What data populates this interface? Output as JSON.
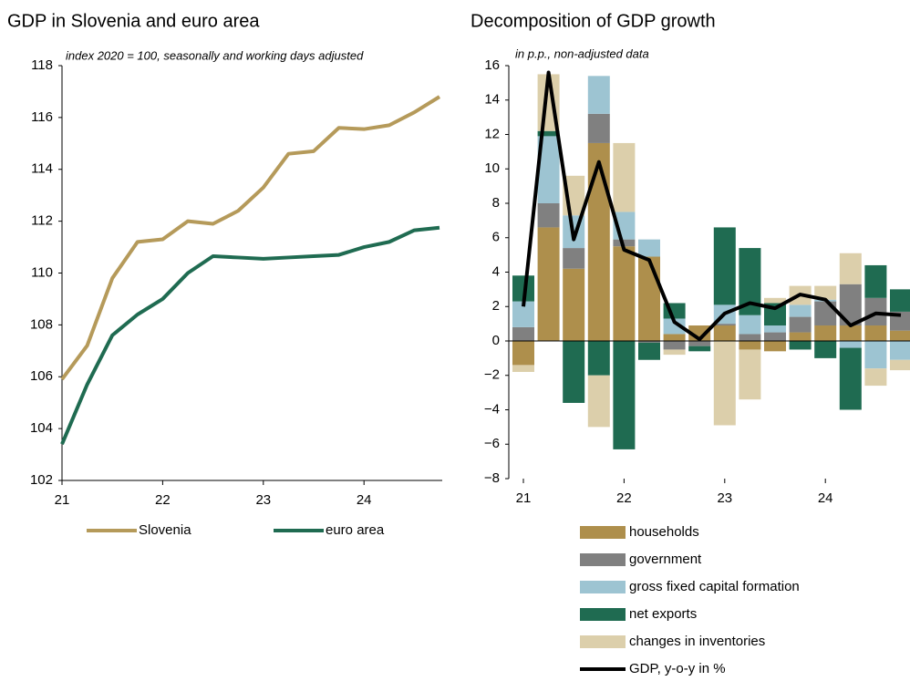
{
  "chart_data": [
    {
      "type": "line",
      "title": "GDP in Slovenia and euro area",
      "subtitle": "index 2020 = 100, seasonally and working days adjusted",
      "categories": [
        "21",
        null,
        null,
        null,
        "22",
        null,
        null,
        null,
        "23",
        null,
        null,
        null,
        "24",
        null,
        null,
        null
      ],
      "series": [
        {
          "name": "Slovenia",
          "color": "#b59a5a",
          "values": [
            105.9,
            107.2,
            109.8,
            111.2,
            111.3,
            112.0,
            111.9,
            112.4,
            113.3,
            114.6,
            114.7,
            115.6,
            115.55,
            115.7,
            116.2,
            116.8
          ]
        },
        {
          "name": "euro area",
          "color": "#1f6b51",
          "values": [
            103.4,
            105.7,
            107.6,
            108.4,
            109.0,
            110.0,
            110.65,
            110.6,
            110.55,
            110.6,
            110.65,
            110.7,
            111.0,
            111.2,
            111.65,
            111.75
          ]
        }
      ],
      "ylim": [
        102,
        118
      ],
      "yticks": [
        102,
        104,
        106,
        108,
        110,
        112,
        114,
        116,
        118
      ],
      "grid": false
    },
    {
      "type": "bar",
      "stacked": true,
      "title": "Decomposition of GDP growth",
      "subtitle": "in p.p., non-adjusted data",
      "categories": [
        "21",
        null,
        null,
        null,
        "22",
        null,
        null,
        null,
        "23",
        null,
        null,
        null,
        "24",
        null,
        null,
        null
      ],
      "series": [
        {
          "name": "households",
          "color": "#ae8f4c",
          "values": [
            -1.4,
            6.6,
            4.2,
            11.5,
            5.5,
            4.9,
            0.4,
            0.9,
            0.9,
            -0.5,
            -0.6,
            0.5,
            0.9,
            0.9,
            0.9,
            0.6
          ]
        },
        {
          "name": "government",
          "color": "#808080",
          "values": [
            0.8,
            1.4,
            1.2,
            1.7,
            0.4,
            -0.1,
            -0.5,
            -0.3,
            0.1,
            0.4,
            0.5,
            0.9,
            1.4,
            2.4,
            1.6,
            1.1
          ]
        },
        {
          "name": "gross fixed capital formation",
          "color": "#9dc4d2",
          "values": [
            1.5,
            3.9,
            1.9,
            2.2,
            1.6,
            1.0,
            0.9,
            0.0,
            1.1,
            1.1,
            0.4,
            0.7,
            0.1,
            -0.4,
            -1.6,
            -1.1
          ]
        },
        {
          "name": "net exports",
          "color": "#1f6b51",
          "values": [
            1.5,
            0.3,
            -3.6,
            -2.0,
            -6.3,
            -1.0,
            0.9,
            -0.3,
            4.5,
            3.9,
            1.3,
            -0.5,
            -1.0,
            -3.6,
            1.9,
            1.3
          ]
        },
        {
          "name": "changes in inventories",
          "color": "#dccfab",
          "values": [
            -0.4,
            3.3,
            2.3,
            -3.0,
            4.0,
            0.0,
            -0.3,
            0.0,
            -4.9,
            -2.9,
            0.3,
            1.1,
            0.8,
            1.8,
            -1.0,
            -0.6
          ]
        },
        {
          "name": "GDP, y-o-y in %",
          "color": "#000000",
          "type": "line",
          "values": [
            2.0,
            15.6,
            5.9,
            10.4,
            5.3,
            4.7,
            1.1,
            0.1,
            1.6,
            2.2,
            1.9,
            2.7,
            2.4,
            0.9,
            1.6,
            1.5
          ]
        }
      ],
      "ylim": [
        -8,
        16
      ],
      "yticks": [
        {
          "value": -8,
          "label": "−8"
        },
        {
          "value": -6,
          "label": "−6"
        },
        {
          "value": -4,
          "label": "−4"
        },
        {
          "value": -2,
          "label": "−2"
        },
        0,
        2,
        4,
        6,
        8,
        10,
        12,
        14,
        16
      ],
      "grid": false
    }
  ]
}
